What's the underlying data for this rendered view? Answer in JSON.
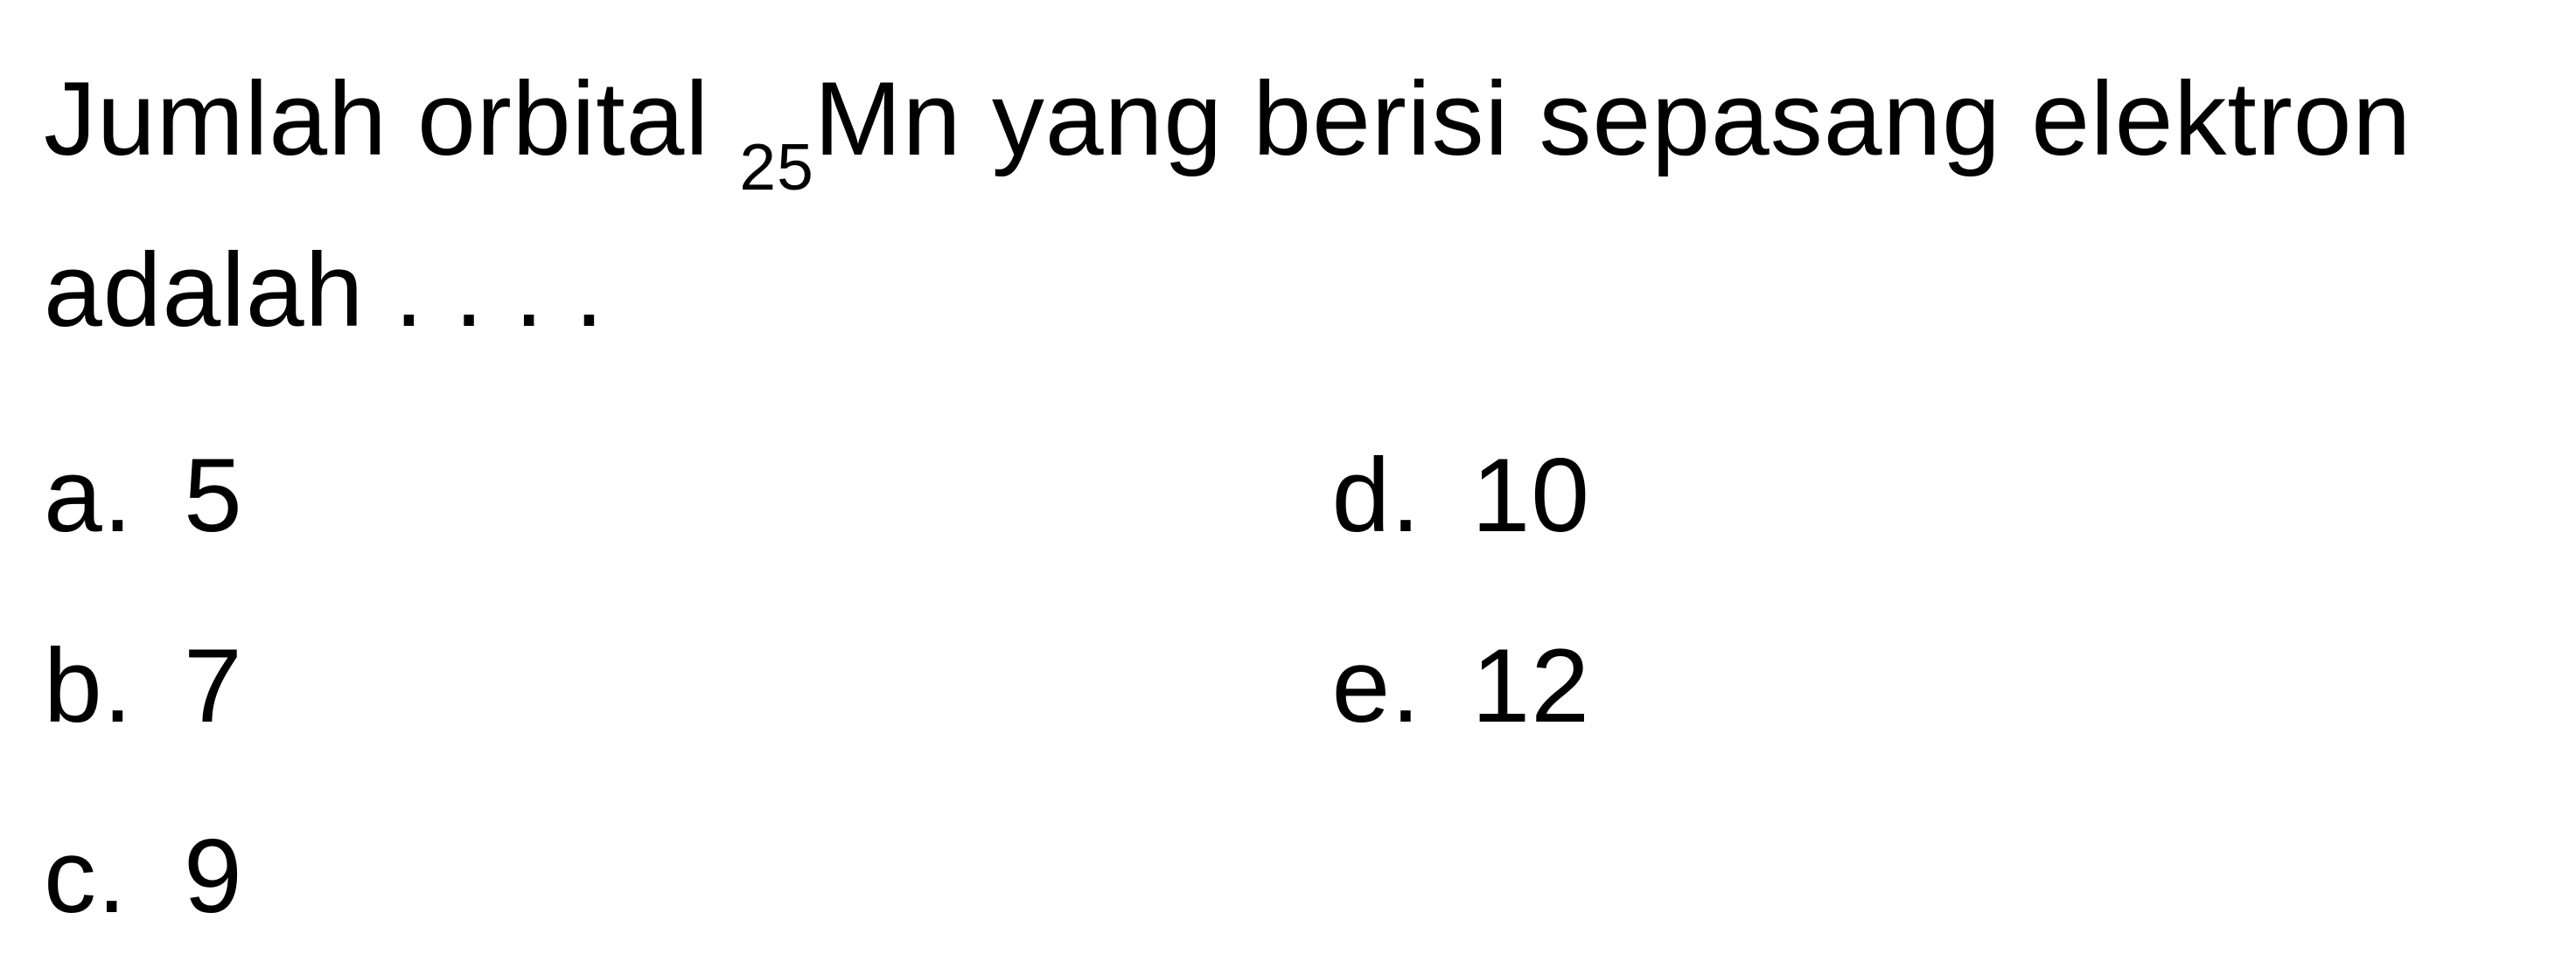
{
  "question": {
    "text_part1": "Jumlah orbital ",
    "subscript": "25",
    "text_part2": "Mn yang berisi sepasang elektron adalah . . . .",
    "font_size": 120,
    "color": "#000000",
    "background_color": "#ffffff"
  },
  "options": [
    {
      "letter": "a.",
      "value": "5",
      "column": 1,
      "row": 1
    },
    {
      "letter": "b.",
      "value": "7",
      "column": 1,
      "row": 2
    },
    {
      "letter": "c.",
      "value": "9",
      "column": 1,
      "row": 3
    },
    {
      "letter": "d.",
      "value": "10",
      "column": 2,
      "row": 1
    },
    {
      "letter": "e.",
      "value": "12",
      "column": 2,
      "row": 2
    }
  ],
  "layout": {
    "columns": 2,
    "option_font_size": 120,
    "option_color": "#000000"
  }
}
